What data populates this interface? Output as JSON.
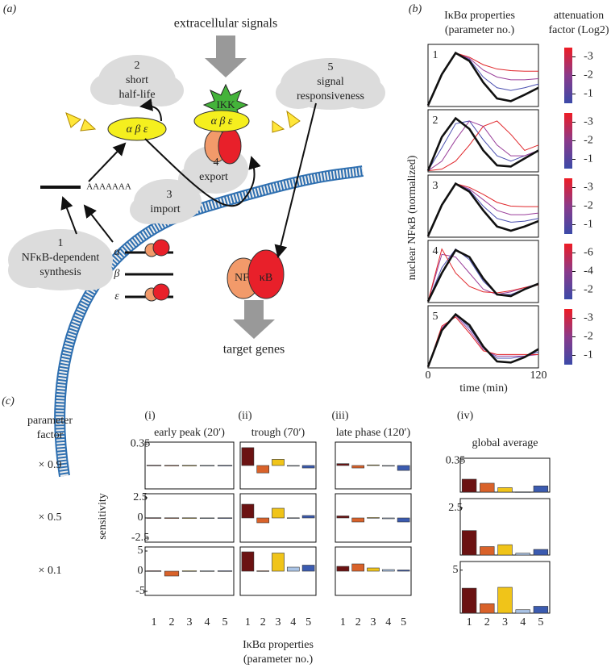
{
  "panel_a": {
    "label": "(a)",
    "signals": "extracellular signals",
    "cloud_1": {
      "number": "1",
      "lines": [
        "NFκB-dependent",
        "synthesis"
      ]
    },
    "cloud_2": {
      "number": "2",
      "lines": [
        "short",
        "half-life"
      ]
    },
    "cloud_3": {
      "number": "3",
      "lines": [
        "import"
      ]
    },
    "cloud_4": {
      "number": "4",
      "lines": [
        "export"
      ]
    },
    "cloud_5": {
      "number": "5",
      "lines": [
        "signal",
        "responsiveness"
      ]
    },
    "ikb_free": "α β ε",
    "ikb_bound": "α β ε",
    "kinase": "IKK",
    "poly_a": "AAAAAAA",
    "genes": [
      "α",
      "β",
      "ε"
    ],
    "nfkb": [
      "NF",
      "κB"
    ],
    "target": "target genes"
  },
  "panel_b": {
    "label": "(b)",
    "title": [
      "IκBα properties",
      "(parameter no.)"
    ],
    "colorbar_title": [
      "attenuation",
      "factor (Log2)"
    ],
    "y_label": "nuclear NFκB  (normalized)",
    "x_label": "time (min)",
    "xlim": [
      0,
      120
    ],
    "xticks": [
      0,
      120
    ],
    "ylim": [
      0,
      1.1
    ],
    "x": [
      0,
      15,
      30,
      45,
      60,
      75,
      90,
      105,
      120
    ],
    "plots": [
      {
        "number": "1",
        "clim": [
          -3.5,
          -0.5
        ],
        "cticks": [
          -3,
          -2,
          -1
        ],
        "series": [
          {
            "color": "#4a4fb0",
            "values": [
              0.02,
              0.6,
              1.0,
              0.88,
              0.55,
              0.35,
              0.3,
              0.35,
              0.42
            ]
          },
          {
            "color": "#9a3f9a",
            "values": [
              0.02,
              0.6,
              1.0,
              0.9,
              0.68,
              0.55,
              0.5,
              0.5,
              0.52
            ]
          },
          {
            "color": "#e0262a",
            "values": [
              0.02,
              0.6,
              1.0,
              0.92,
              0.78,
              0.7,
              0.67,
              0.66,
              0.66
            ]
          },
          {
            "color": "#111111",
            "values": [
              0.02,
              0.6,
              1.0,
              0.85,
              0.45,
              0.15,
              0.1,
              0.22,
              0.35
            ]
          }
        ]
      },
      {
        "number": "2",
        "clim": [
          -3.5,
          -0.5
        ],
        "cticks": [
          -3,
          -2,
          -1
        ],
        "series": [
          {
            "color": "#4a4fb0",
            "values": [
              0.02,
              0.45,
              0.9,
              0.95,
              0.6,
              0.3,
              0.2,
              0.3,
              0.4
            ]
          },
          {
            "color": "#9a3f9a",
            "values": [
              0.02,
              0.2,
              0.6,
              0.95,
              0.85,
              0.5,
              0.3,
              0.3,
              0.4
            ]
          },
          {
            "color": "#e0262a",
            "values": [
              0.02,
              0.05,
              0.2,
              0.5,
              0.85,
              0.95,
              0.7,
              0.4,
              0.5
            ]
          },
          {
            "color": "#111111",
            "values": [
              0.02,
              0.65,
              1.0,
              0.8,
              0.4,
              0.12,
              0.1,
              0.25,
              0.4
            ]
          }
        ]
      },
      {
        "number": "3",
        "clim": [
          -3.5,
          -0.5
        ],
        "cticks": [
          -3,
          -2,
          -1
        ],
        "series": [
          {
            "color": "#4a4fb0",
            "values": [
              0.02,
              0.6,
              1.0,
              0.88,
              0.58,
              0.35,
              0.28,
              0.3,
              0.35
            ]
          },
          {
            "color": "#9a3f9a",
            "values": [
              0.02,
              0.6,
              1.0,
              0.9,
              0.7,
              0.5,
              0.42,
              0.42,
              0.45
            ]
          },
          {
            "color": "#e0262a",
            "values": [
              0.02,
              0.6,
              1.0,
              0.93,
              0.8,
              0.65,
              0.58,
              0.57,
              0.57
            ]
          },
          {
            "color": "#111111",
            "values": [
              0.02,
              0.6,
              1.0,
              0.85,
              0.5,
              0.2,
              0.12,
              0.2,
              0.3
            ]
          }
        ]
      },
      {
        "number": "4",
        "clim": [
          -7,
          -1
        ],
        "cticks": [
          -6,
          -4,
          -2
        ],
        "series": [
          {
            "color": "#4a4fb0",
            "values": [
              0.02,
              0.65,
              1.0,
              0.8,
              0.4,
              0.15,
              0.15,
              0.25,
              0.35
            ]
          },
          {
            "color": "#9a3f9a",
            "values": [
              0.02,
              0.9,
              0.85,
              0.55,
              0.25,
              0.15,
              0.2,
              0.28,
              0.35
            ]
          },
          {
            "color": "#e0262a",
            "values": [
              0.02,
              1.0,
              0.55,
              0.3,
              0.2,
              0.18,
              0.22,
              0.28,
              0.33
            ]
          },
          {
            "color": "#111111",
            "values": [
              0.02,
              0.55,
              0.98,
              0.85,
              0.45,
              0.15,
              0.12,
              0.25,
              0.35
            ]
          }
        ]
      },
      {
        "number": "5",
        "clim": [
          -3.5,
          -0.5
        ],
        "cticks": [
          -3,
          -2,
          -1
        ],
        "series": [
          {
            "color": "#4a4fb0",
            "values": [
              0.02,
              0.72,
              1.0,
              0.75,
              0.38,
              0.18,
              0.18,
              0.22,
              0.3
            ]
          },
          {
            "color": "#9a3f9a",
            "values": [
              0.02,
              0.75,
              0.98,
              0.7,
              0.35,
              0.22,
              0.22,
              0.22,
              0.25
            ]
          },
          {
            "color": "#e0262a",
            "values": [
              0.02,
              0.78,
              0.95,
              0.65,
              0.32,
              0.25,
              0.25,
              0.25,
              0.25
            ]
          },
          {
            "color": "#111111",
            "values": [
              0.02,
              0.7,
              1.0,
              0.8,
              0.4,
              0.12,
              0.1,
              0.2,
              0.35
            ]
          }
        ]
      }
    ]
  },
  "panel_c": {
    "label": "(c)",
    "factor_title": [
      "parameter",
      "factor"
    ],
    "y_label": "sensitivity",
    "x_label": [
      "IκBα properties",
      "(parameter no.)"
    ],
    "categories": [
      "1",
      "2",
      "3",
      "4",
      "5"
    ],
    "colors": [
      "#6b1212",
      "#d9622a",
      "#f0c419",
      "#aac4e6",
      "#3b5bb0"
    ],
    "columns": [
      {
        "number": "(i)",
        "title": "early peak (20′)"
      },
      {
        "number": "(ii)",
        "title": "trough (70′)"
      },
      {
        "number": "(iii)",
        "title": "late phase (120′)"
      },
      {
        "number": "(iv)",
        "title": "global average"
      }
    ],
    "rows": [
      {
        "factor": "× 0.9",
        "ylim": [
          -0.38,
          0.38
        ],
        "yticks": [
          0.35
        ],
        "avg_ylim": [
          0,
          0.38
        ],
        "avg_yticks": [
          0.35
        ],
        "values": [
          [
            0.005,
            0.003,
            0.003,
            0.002,
            0.003
          ],
          [
            0.29,
            -0.12,
            0.1,
            -0.005,
            -0.04
          ],
          [
            0.03,
            -0.04,
            0.01,
            -0.01,
            -0.08
          ],
          [
            0.145,
            0.1,
            0.05,
            0.003,
            0.07
          ]
        ]
      },
      {
        "factor": "× 0.5",
        "ylim": [
          -3,
          3
        ],
        "yticks": [
          2.5,
          0,
          -2.5
        ],
        "avg_ylim": [
          0,
          3
        ],
        "avg_yticks": [
          2.5
        ],
        "values": [
          [
            0.03,
            0.02,
            0.02,
            0.01,
            0.02
          ],
          [
            1.7,
            -0.6,
            1.2,
            0.02,
            0.3
          ],
          [
            0.25,
            -0.5,
            0.05,
            -0.1,
            -0.5
          ],
          [
            1.3,
            0.45,
            0.55,
            0.1,
            0.3
          ]
        ]
      },
      {
        "factor": "× 0.1",
        "ylim": [
          -6,
          6
        ],
        "yticks": [
          5,
          0,
          -5
        ],
        "avg_ylim": [
          0,
          6
        ],
        "avg_yticks": [
          5
        ],
        "values": [
          [
            0.1,
            -1.2,
            0.1,
            0.1,
            0.1
          ],
          [
            4.8,
            0.1,
            4.5,
            1.0,
            1.5
          ],
          [
            1.2,
            1.8,
            0.8,
            0.4,
            0.3
          ],
          [
            2.9,
            1.1,
            3.0,
            0.4,
            0.8
          ]
        ]
      }
    ]
  }
}
